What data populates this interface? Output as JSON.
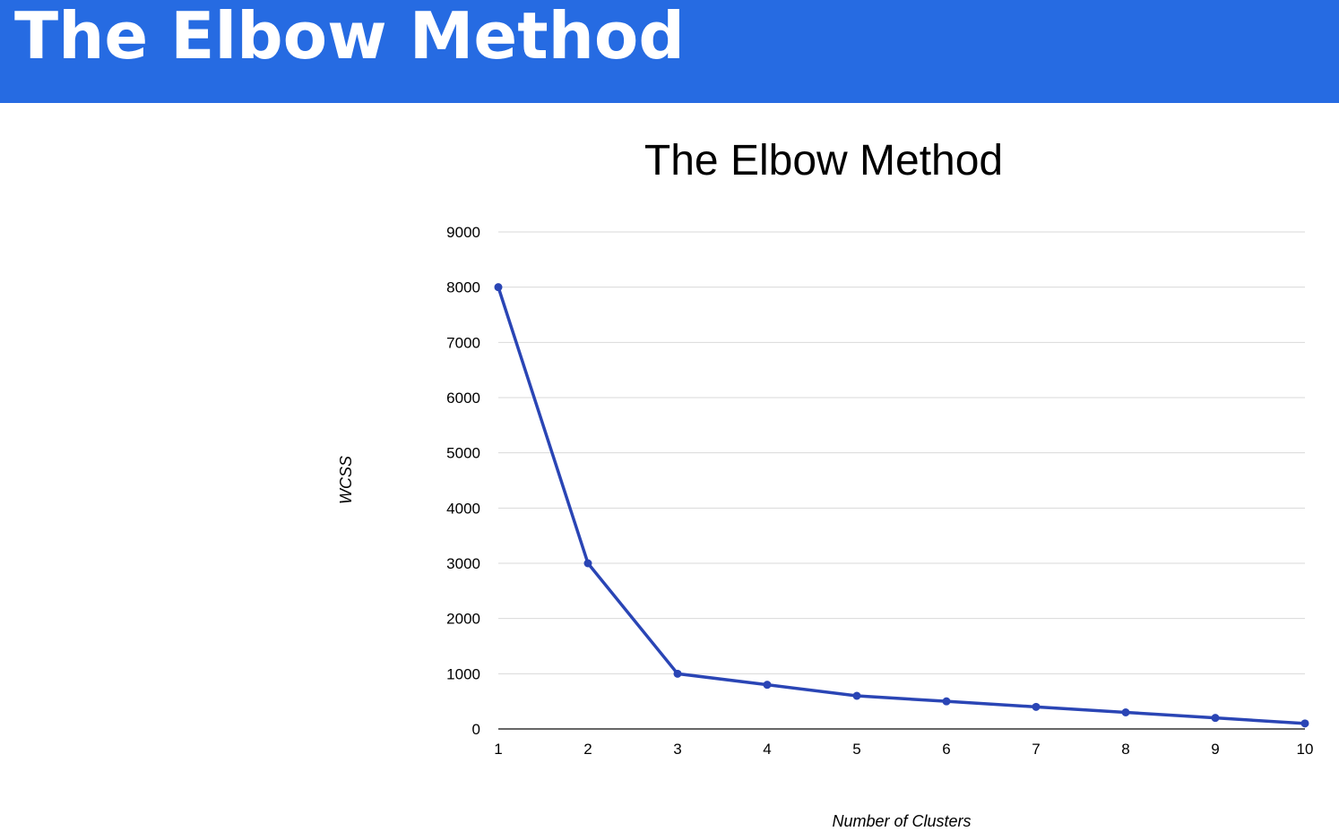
{
  "header": {
    "title": "The Elbow Method"
  },
  "colors": {
    "banner": "#266be2",
    "line": "#2a45b5",
    "grid": "#d9d9d9",
    "axis": "#333333",
    "text": "#000000"
  },
  "chart_data": {
    "type": "line",
    "title": "The Elbow Method",
    "xlabel": "Number of Clusters",
    "ylabel": "WCSS",
    "categories": [
      "1",
      "2",
      "3",
      "4",
      "5",
      "6",
      "7",
      "8",
      "9",
      "10"
    ],
    "x": [
      1,
      2,
      3,
      4,
      5,
      6,
      7,
      8,
      9,
      10
    ],
    "series": [
      {
        "values": [
          8000,
          3000,
          1000,
          800,
          600,
          500,
          400,
          300,
          200,
          100
        ]
      }
    ],
    "ylim": [
      0,
      9000
    ],
    "yticks": [
      "0",
      "1000",
      "2000",
      "3000",
      "4000",
      "5000",
      "6000",
      "7000",
      "8000",
      "9000"
    ],
    "grid": true,
    "legend": "none",
    "markers": true
  }
}
